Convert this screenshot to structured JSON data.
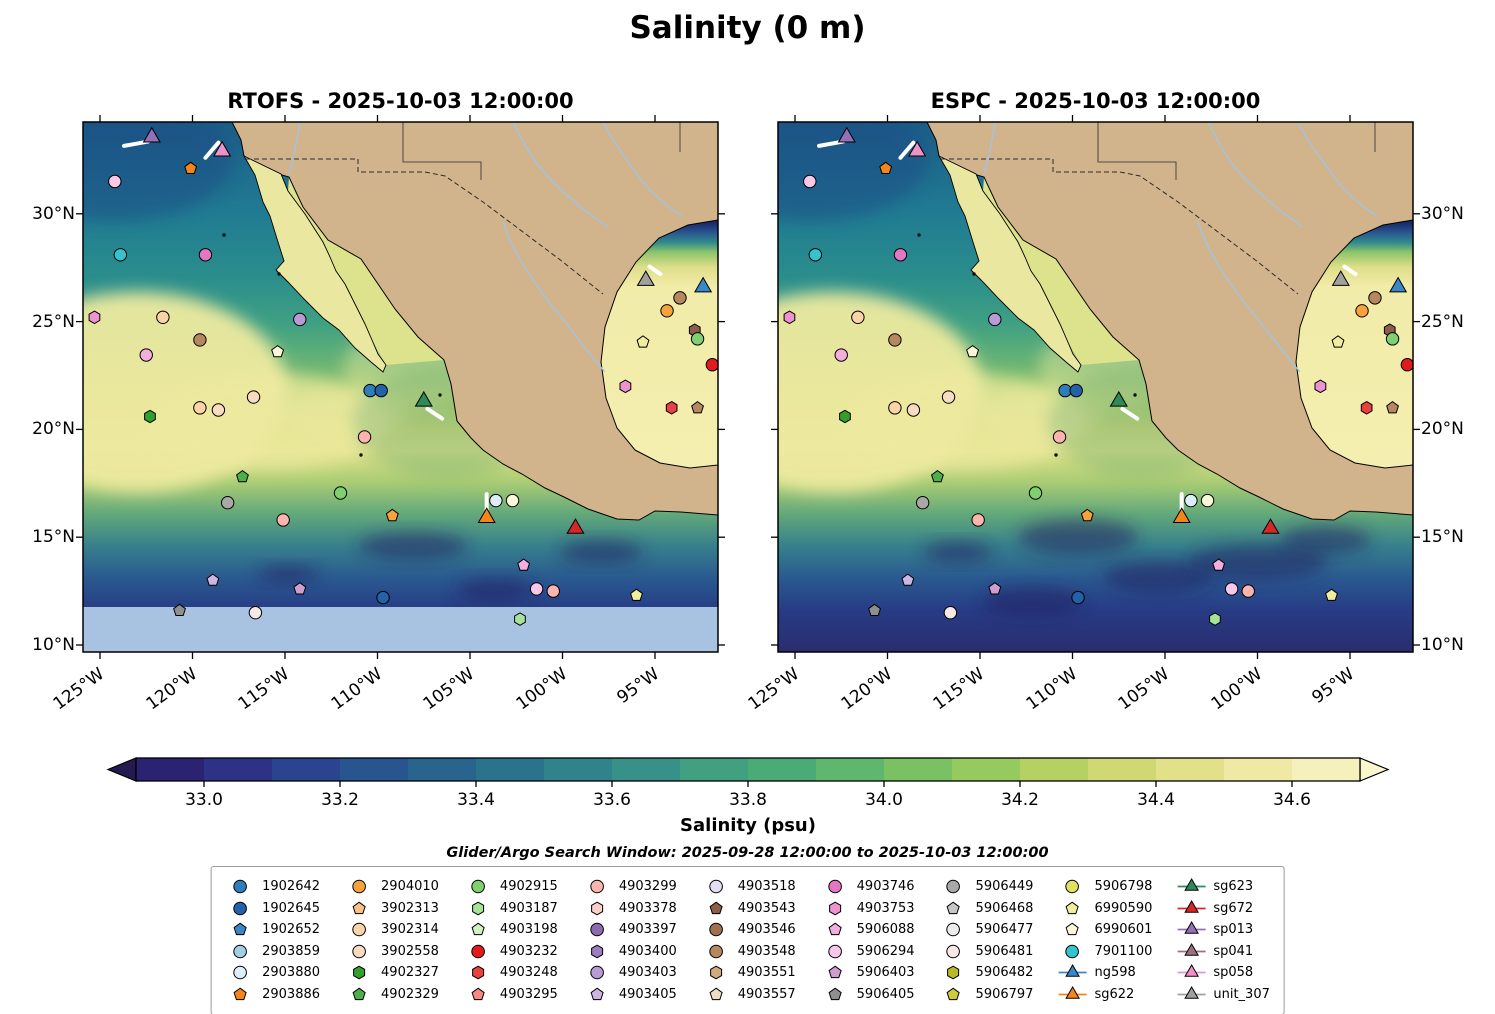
{
  "title": "Salinity (0 m)",
  "search_window": "Glider/Argo Search Window: 2025-09-28 12:00:00 to 2025-10-03 12:00:00",
  "panels": [
    {
      "id": "rtofs",
      "title": "RTOFS - 2025-10-03 12:00:00",
      "lat_label_side": "left",
      "nodata_band": true
    },
    {
      "id": "espc",
      "title": "ESPC - 2025-10-03 12:00:00",
      "lat_label_side": "right",
      "nodata_band": false
    }
  ],
  "axes": {
    "lon_ticks": [
      {
        "label": "125°W",
        "value": 125
      },
      {
        "label": "120°W",
        "value": 120
      },
      {
        "label": "115°W",
        "value": 115
      },
      {
        "label": "110°W",
        "value": 110
      },
      {
        "label": "105°W",
        "value": 105
      },
      {
        "label": "100°W",
        "value": 100
      },
      {
        "label": "95°W",
        "value": 95
      }
    ],
    "lat_ticks": [
      {
        "label": "30°N",
        "value": 30
      },
      {
        "label": "25°N",
        "value": 25
      },
      {
        "label": "20°N",
        "value": 20
      },
      {
        "label": "15°N",
        "value": 15
      },
      {
        "label": "10°N",
        "value": 10
      }
    ]
  },
  "colorbar": {
    "label": "Salinity (psu)",
    "ticks": [
      "33.0",
      "33.2",
      "33.4",
      "33.6",
      "33.8",
      "34.0",
      "34.2",
      "34.4",
      "34.6"
    ],
    "under_color": "#241a4f",
    "over_color": "#faf7cf",
    "colors": [
      "#2c2272",
      "#2d3286",
      "#2b4490",
      "#285590",
      "#28648e",
      "#2b738d",
      "#30828b",
      "#379188",
      "#40a080",
      "#4bab76",
      "#5fb66d",
      "#79c163",
      "#96ca5e",
      "#b5d163",
      "#d0d873",
      "#e3e08a",
      "#efe9a3",
      "#f6f0bd"
    ]
  },
  "map_colors": {
    "land": "#d2b48c",
    "peninsula": "#e9e7a0",
    "gulf_california": "#dde28c",
    "nodata_band": "#a8c2e2",
    "river": "#a0c4e8",
    "track": "#ffffff",
    "west_yellow": "#eeeaa0",
    "northwest_dark": "#1b4c86",
    "coastal_green": "#55a06c",
    "eddy": "#221d60",
    "ocean_stops": [
      [
        0,
        "#1c5d88"
      ],
      [
        0.17,
        "#207b92"
      ],
      [
        0.29,
        "#2a8d8c"
      ],
      [
        0.38,
        "#3fa083"
      ],
      [
        0.46,
        "#6cb573"
      ],
      [
        0.52,
        "#a5cb6d"
      ],
      [
        0.58,
        "#d3da7d"
      ],
      [
        0.62,
        "#e0e18a"
      ],
      [
        0.68,
        "#a9cc74"
      ],
      [
        0.74,
        "#62a87a"
      ],
      [
        0.8,
        "#37808c"
      ],
      [
        0.86,
        "#2a5a90"
      ],
      [
        0.92,
        "#273c85"
      ],
      [
        1,
        "#2a2d6e"
      ]
    ],
    "gulf_mexico_stops": [
      [
        0,
        "#151d5e"
      ],
      [
        0.05,
        "#2a5590"
      ],
      [
        0.09,
        "#2f8a8c"
      ],
      [
        0.13,
        "#8cc46a"
      ],
      [
        0.19,
        "#dede8a"
      ],
      [
        0.27,
        "#f2eca9"
      ],
      [
        1,
        "#f4eeb0"
      ]
    ]
  },
  "legend": {
    "entries": [
      {
        "label": "1902642",
        "shape": "circle",
        "color": "#2e7ebc",
        "line": false
      },
      {
        "label": "1902645",
        "shape": "circle",
        "color": "#2361a8",
        "line": false
      },
      {
        "label": "1902652",
        "shape": "pentagon",
        "color": "#3a87c8",
        "line": false
      },
      {
        "label": "2903859",
        "shape": "circle",
        "color": "#a6cee3",
        "line": false
      },
      {
        "label": "2903880",
        "shape": "circle",
        "color": "#ddeef8",
        "line": false
      },
      {
        "label": "2903886",
        "shape": "pentagon",
        "color": "#f58518",
        "line": false
      },
      {
        "label": "2904010",
        "shape": "circle",
        "color": "#f9a23c",
        "line": false
      },
      {
        "label": "3902313",
        "shape": "pentagon",
        "color": "#fbc184",
        "line": false
      },
      {
        "label": "3902314",
        "shape": "circle",
        "color": "#fbd3a8",
        "line": false
      },
      {
        "label": "3902558",
        "shape": "circle",
        "color": "#f8dcc0",
        "line": false
      },
      {
        "label": "4902327",
        "shape": "hexagon",
        "color": "#33a02c",
        "line": false
      },
      {
        "label": "4902329",
        "shape": "pentagon",
        "color": "#4daf4a",
        "line": false
      },
      {
        "label": "4902915",
        "shape": "circle",
        "color": "#7fd06f",
        "line": false
      },
      {
        "label": "4903187",
        "shape": "hexagon",
        "color": "#a6e398",
        "line": false
      },
      {
        "label": "4903198",
        "shape": "pentagon",
        "color": "#d3f0c2",
        "line": false
      },
      {
        "label": "4903232",
        "shape": "circle",
        "color": "#e31a1c",
        "line": false
      },
      {
        "label": "4903248",
        "shape": "hexagon",
        "color": "#e8413f",
        "line": false
      },
      {
        "label": "4903295",
        "shape": "pentagon",
        "color": "#f58a83",
        "line": false
      },
      {
        "label": "4903299",
        "shape": "circle",
        "color": "#fbb4ae",
        "line": false
      },
      {
        "label": "4903378",
        "shape": "hexagon",
        "color": "#fccfcb",
        "line": false
      },
      {
        "label": "4903397",
        "shape": "circle",
        "color": "#8c6bb1",
        "line": false
      },
      {
        "label": "4903400",
        "shape": "hexagon",
        "color": "#9e7cc1",
        "line": false
      },
      {
        "label": "4903403",
        "shape": "circle",
        "color": "#b89bd4",
        "line": false
      },
      {
        "label": "4903405",
        "shape": "pentagon",
        "color": "#cdb6e3",
        "line": false
      },
      {
        "label": "4903518",
        "shape": "circle",
        "color": "#e4def2",
        "line": false
      },
      {
        "label": "4903543",
        "shape": "pentagon",
        "color": "#8c5e48",
        "line": false
      },
      {
        "label": "4903546",
        "shape": "circle",
        "color": "#a0714f",
        "line": false
      },
      {
        "label": "4903548",
        "shape": "circle",
        "color": "#b58860",
        "line": false
      },
      {
        "label": "4903551",
        "shape": "hexagon",
        "color": "#cfa97f",
        "line": false
      },
      {
        "label": "4903557",
        "shape": "pentagon",
        "color": "#eedcc3",
        "line": false
      },
      {
        "label": "4903746",
        "shape": "circle",
        "color": "#e377c2",
        "line": false
      },
      {
        "label": "4903753",
        "shape": "hexagon",
        "color": "#ec93d0",
        "line": false
      },
      {
        "label": "5906088",
        "shape": "pentagon",
        "color": "#f4aede",
        "line": false
      },
      {
        "label": "5906294",
        "shape": "circle",
        "color": "#f9c7e8",
        "line": false
      },
      {
        "label": "5906403",
        "shape": "pentagon",
        "color": "#cf9ed0",
        "line": false
      },
      {
        "label": "5906405",
        "shape": "pentagon",
        "color": "#8f8f8f",
        "line": false
      },
      {
        "label": "5906449",
        "shape": "circle",
        "color": "#a8a8a8",
        "line": false
      },
      {
        "label": "5906468",
        "shape": "pentagon",
        "color": "#c6c6c6",
        "line": false
      },
      {
        "label": "5906477",
        "shape": "circle",
        "color": "#ececec",
        "line": false
      },
      {
        "label": "5906481",
        "shape": "circle",
        "color": "#f6e8e6",
        "line": false
      },
      {
        "label": "5906482",
        "shape": "hexagon",
        "color": "#b9ba25",
        "line": false
      },
      {
        "label": "5906797",
        "shape": "pentagon",
        "color": "#cdcc3a",
        "line": false
      },
      {
        "label": "5906798",
        "shape": "circle",
        "color": "#e2df63",
        "line": false
      },
      {
        "label": "6990590",
        "shape": "pentagon",
        "color": "#f0eda0",
        "line": false
      },
      {
        "label": "6990601",
        "shape": "pentagon",
        "color": "#faf8d8",
        "line": false
      },
      {
        "label": "7901100",
        "shape": "circle",
        "color": "#35c4ce",
        "line": false
      },
      {
        "label": "ng598",
        "shape": "triangle",
        "color": "#3a87c8",
        "line": true
      },
      {
        "label": "sg622",
        "shape": "triangle",
        "color": "#f58518",
        "line": true
      },
      {
        "label": "sg623",
        "shape": "triangle",
        "color": "#2e8b57",
        "line": true
      },
      {
        "label": "sg672",
        "shape": "triangle",
        "color": "#d62728",
        "line": true
      },
      {
        "label": "sp013",
        "shape": "triangle",
        "color": "#9370b8",
        "line": true
      },
      {
        "label": "sp041",
        "shape": "triangle",
        "color": "#9e7082",
        "line": true
      },
      {
        "label": "sp058",
        "shape": "triangle",
        "color": "#f092c9",
        "line": true
      },
      {
        "label": "unit_307",
        "shape": "triangle",
        "color": "#a0a0a0",
        "line": true
      }
    ]
  },
  "markers": [
    {
      "lon": 122.2,
      "lat": 33.55,
      "shape": "triangle",
      "color": "#9370b8"
    },
    {
      "lon": 118.4,
      "lat": 32.9,
      "shape": "triangle",
      "color": "#f092c9"
    },
    {
      "lon": 120.1,
      "lat": 32.1,
      "shape": "pentagon",
      "color": "#f58518"
    },
    {
      "lon": 124.2,
      "lat": 31.5,
      "shape": "circle",
      "color": "#f9c7e8"
    },
    {
      "lon": 123.9,
      "lat": 28.1,
      "shape": "circle",
      "color": "#35c4ce"
    },
    {
      "lon": 119.3,
      "lat": 28.1,
      "shape": "circle",
      "color": "#e377c2"
    },
    {
      "lon": 125.3,
      "lat": 25.2,
      "shape": "hexagon",
      "color": "#ec93d0"
    },
    {
      "lon": 121.6,
      "lat": 25.2,
      "shape": "circle",
      "color": "#fbd3a8"
    },
    {
      "lon": 114.2,
      "lat": 25.1,
      "shape": "circle",
      "color": "#b89bd4"
    },
    {
      "lon": 119.6,
      "lat": 24.15,
      "shape": "circle",
      "color": "#b58860"
    },
    {
      "lon": 122.5,
      "lat": 23.45,
      "shape": "circle",
      "color": "#f4aede"
    },
    {
      "lon": 115.4,
      "lat": 23.6,
      "shape": "pentagon",
      "color": "#faf8d8"
    },
    {
      "lon": 116.7,
      "lat": 21.5,
      "shape": "circle",
      "color": "#f8dcc0"
    },
    {
      "lon": 122.3,
      "lat": 20.6,
      "shape": "hexagon",
      "color": "#33a02c"
    },
    {
      "lon": 119.6,
      "lat": 21.0,
      "shape": "circle",
      "color": "#fbd3a8"
    },
    {
      "lon": 118.6,
      "lat": 20.9,
      "shape": "circle",
      "color": "#f8dcc0"
    },
    {
      "lon": 110.4,
      "lat": 21.8,
      "shape": "circle",
      "color": "#2e7ebc"
    },
    {
      "lon": 109.8,
      "lat": 21.8,
      "shape": "circle",
      "color": "#2361a8"
    },
    {
      "lon": 107.5,
      "lat": 21.3,
      "shape": "triangle",
      "color": "#2e8b57"
    },
    {
      "lon": 110.7,
      "lat": 19.65,
      "shape": "circle",
      "color": "#fbb4ae"
    },
    {
      "lon": 117.3,
      "lat": 17.8,
      "shape": "pentagon",
      "color": "#4daf4a"
    },
    {
      "lon": 118.1,
      "lat": 16.6,
      "shape": "circle",
      "color": "#a8a8a8"
    },
    {
      "lon": 112.0,
      "lat": 17.05,
      "shape": "circle",
      "color": "#7fd06f"
    },
    {
      "lon": 115.1,
      "lat": 15.8,
      "shape": "circle",
      "color": "#fbb4ae"
    },
    {
      "lon": 109.2,
      "lat": 16.0,
      "shape": "pentagon",
      "color": "#f9a23c"
    },
    {
      "lon": 103.6,
      "lat": 16.7,
      "shape": "circle",
      "color": "#ddeef8"
    },
    {
      "lon": 102.7,
      "lat": 16.7,
      "shape": "circle",
      "color": "#faf8d8"
    },
    {
      "lon": 104.1,
      "lat": 15.9,
      "shape": "triangle",
      "color": "#f58518"
    },
    {
      "lon": 99.3,
      "lat": 15.4,
      "shape": "triangle",
      "color": "#d62728"
    },
    {
      "lon": 102.1,
      "lat": 13.7,
      "shape": "pentagon",
      "color": "#f4aede"
    },
    {
      "lon": 118.9,
      "lat": 13.0,
      "shape": "pentagon",
      "color": "#cdb6e3"
    },
    {
      "lon": 101.4,
      "lat": 12.6,
      "shape": "circle",
      "color": "#f9c7e8"
    },
    {
      "lon": 100.5,
      "lat": 12.5,
      "shape": "circle",
      "color": "#fbb4ae"
    },
    {
      "lon": 114.2,
      "lat": 12.6,
      "shape": "pentagon",
      "color": "#cf9ed0"
    },
    {
      "lon": 109.7,
      "lat": 12.2,
      "shape": "circle",
      "color": "#2361a8"
    },
    {
      "lon": 120.7,
      "lat": 11.6,
      "shape": "pentagon",
      "color": "#8f8f8f"
    },
    {
      "lon": 116.6,
      "lat": 11.5,
      "shape": "circle",
      "color": "#f6e8e6"
    },
    {
      "lon": 96.0,
      "lat": 12.3,
      "shape": "pentagon",
      "color": "#f0eda0"
    },
    {
      "lon": 102.3,
      "lat": 11.2,
      "shape": "hexagon",
      "color": "#a6e398"
    },
    {
      "lon": 95.5,
      "lat": 26.9,
      "shape": "triangle",
      "color": "#a0a0a0"
    },
    {
      "lon": 92.4,
      "lat": 26.6,
      "shape": "triangle",
      "color": "#3a87c8"
    },
    {
      "lon": 93.65,
      "lat": 26.1,
      "shape": "circle",
      "color": "#b58860"
    },
    {
      "lon": 94.35,
      "lat": 25.5,
      "shape": "circle",
      "color": "#f9a23c"
    },
    {
      "lon": 95.65,
      "lat": 24.05,
      "shape": "pentagon",
      "color": "#f0eda0"
    },
    {
      "lon": 92.85,
      "lat": 24.6,
      "shape": "hexagon",
      "color": "#8c5e48"
    },
    {
      "lon": 92.7,
      "lat": 24.2,
      "shape": "circle",
      "color": "#7fd06f"
    },
    {
      "lon": 96.6,
      "lat": 22.0,
      "shape": "hexagon",
      "color": "#ec93d0"
    },
    {
      "lon": 94.1,
      "lat": 21.0,
      "shape": "hexagon",
      "color": "#e8413f"
    },
    {
      "lon": 92.7,
      "lat": 21.0,
      "shape": "pentagon",
      "color": "#b58860"
    },
    {
      "lon": 91.9,
      "lat": 23.0,
      "shape": "circle",
      "color": "#e31a1c"
    }
  ],
  "tracks": [
    [
      123.7,
      33.15,
      122.4,
      33.35
    ],
    [
      119.3,
      32.6,
      118.6,
      33.3
    ],
    [
      107.3,
      20.95,
      106.5,
      20.5
    ],
    [
      104.1,
      17.0,
      104.1,
      16.25
    ],
    [
      95.3,
      27.55,
      94.7,
      27.2
    ]
  ],
  "chart_data": {
    "type": "heatmap",
    "title": "Salinity (0 m)",
    "variable": "Salinity (psu)",
    "panels": [
      "RTOFS - 2025-10-03 12:00:00",
      "ESPC - 2025-10-03 12:00:00"
    ],
    "colorbar_ticks": [
      33.0,
      33.2,
      33.4,
      33.6,
      33.8,
      34.0,
      34.2,
      34.4,
      34.6
    ],
    "colorbar_extends": "both",
    "lon_axis_deg_w": [
      126,
      91.5
    ],
    "lat_axis_deg_n": [
      9.7,
      34.3
    ],
    "legend_note": "Argo float / glider positions overlaid; see legend.entries and markers arrays",
    "annotation": "Glider/Argo Search Window: 2025-09-28 12:00:00 to 2025-10-03 12:00:00"
  }
}
